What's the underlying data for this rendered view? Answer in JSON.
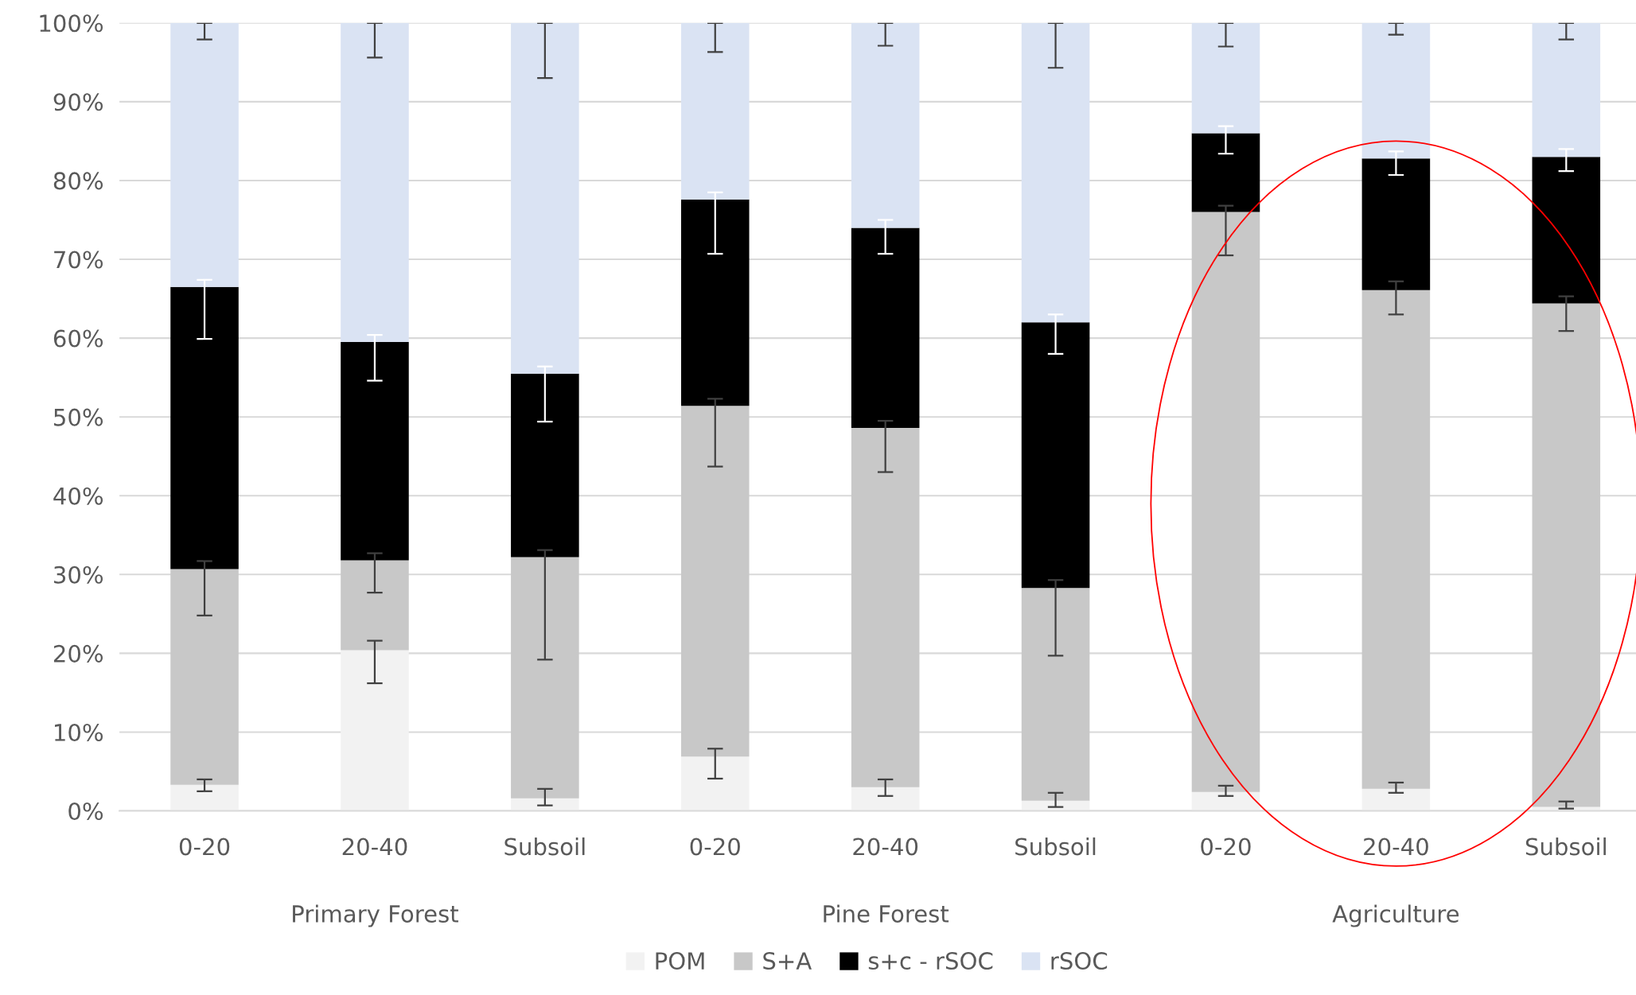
{
  "chart_data": {
    "type": "bar",
    "stacked": true,
    "categories": [
      "0-20",
      "20-40",
      "Subsoil",
      "0-20",
      "20-40",
      "Subsoil",
      "0-20",
      "20-40",
      "Subsoil"
    ],
    "series": [
      {
        "name": "POM",
        "color": "#f2f2f2",
        "values": [
          3.3,
          20.4,
          1.6,
          6.9,
          3.0,
          1.3,
          2.4,
          2.8,
          0.5
        ],
        "errors": [
          [
            2.5,
            4.0
          ],
          [
            16.2,
            21.6
          ],
          [
            0.7,
            2.8
          ],
          [
            4.1,
            7.9
          ],
          [
            1.9,
            4.0
          ],
          [
            0.5,
            2.3
          ],
          [
            1.9,
            3.2
          ],
          [
            2.3,
            3.6
          ],
          [
            0.3,
            1.2
          ]
        ]
      },
      {
        "name": "S+A",
        "color": "#c8c8c8",
        "values": [
          27.4,
          11.4,
          30.6,
          44.5,
          45.6,
          27.0,
          73.6,
          63.3,
          63.9
        ],
        "errors": [
          [
            24.8,
            31.7
          ],
          [
            27.7,
            32.7
          ],
          [
            19.2,
            33.1
          ],
          [
            43.7,
            52.3
          ],
          [
            43.0,
            49.5
          ],
          [
            19.7,
            29.3
          ],
          [
            70.5,
            76.8
          ],
          [
            63.0,
            67.2
          ],
          [
            60.9,
            65.3
          ]
        ]
      },
      {
        "name": "s+c - rSOC",
        "color": "#000000",
        "values": [
          35.8,
          27.7,
          23.3,
          26.2,
          25.4,
          33.7,
          10.0,
          16.7,
          18.6
        ],
        "errors": [
          [
            59.9,
            67.4
          ],
          [
            54.6,
            60.4
          ],
          [
            49.4,
            56.4
          ],
          [
            70.7,
            78.5
          ],
          [
            70.7,
            75.0
          ],
          [
            58.0,
            63.0
          ],
          [
            83.4,
            86.9
          ],
          [
            80.7,
            83.7
          ],
          [
            81.2,
            84.0
          ]
        ]
      },
      {
        "name": "rSOC",
        "color": "#dae3f3",
        "values": [
          33.5,
          40.5,
          44.5,
          22.4,
          26.0,
          38.0,
          14.0,
          17.2,
          17.0
        ],
        "errors": [
          [
            97.9,
            100
          ],
          [
            95.6,
            100
          ],
          [
            93.0,
            100
          ],
          [
            96.3,
            100
          ],
          [
            97.1,
            100
          ],
          [
            94.3,
            100
          ],
          [
            97.0,
            100
          ],
          [
            98.5,
            100
          ],
          [
            97.9,
            100
          ]
        ]
      }
    ],
    "ylim": [
      0,
      100
    ],
    "yticks": [
      {
        "value": 0,
        "label": "0%"
      },
      {
        "value": 10,
        "label": "10%"
      },
      {
        "value": 20,
        "label": "20%"
      },
      {
        "value": 30,
        "label": "30%"
      },
      {
        "value": 40,
        "label": "40%"
      },
      {
        "value": 50,
        "label": "50%"
      },
      {
        "value": 60,
        "label": "60%"
      },
      {
        "value": 70,
        "label": "70%"
      },
      {
        "value": 80,
        "label": "80%"
      },
      {
        "value": 90,
        "label": "90%"
      },
      {
        "value": 100,
        "label": "100%"
      }
    ],
    "annotations": [
      "Primary Forest",
      "Pine Forest",
      "Agriculture"
    ],
    "grid": "y",
    "legend": "bottom"
  }
}
